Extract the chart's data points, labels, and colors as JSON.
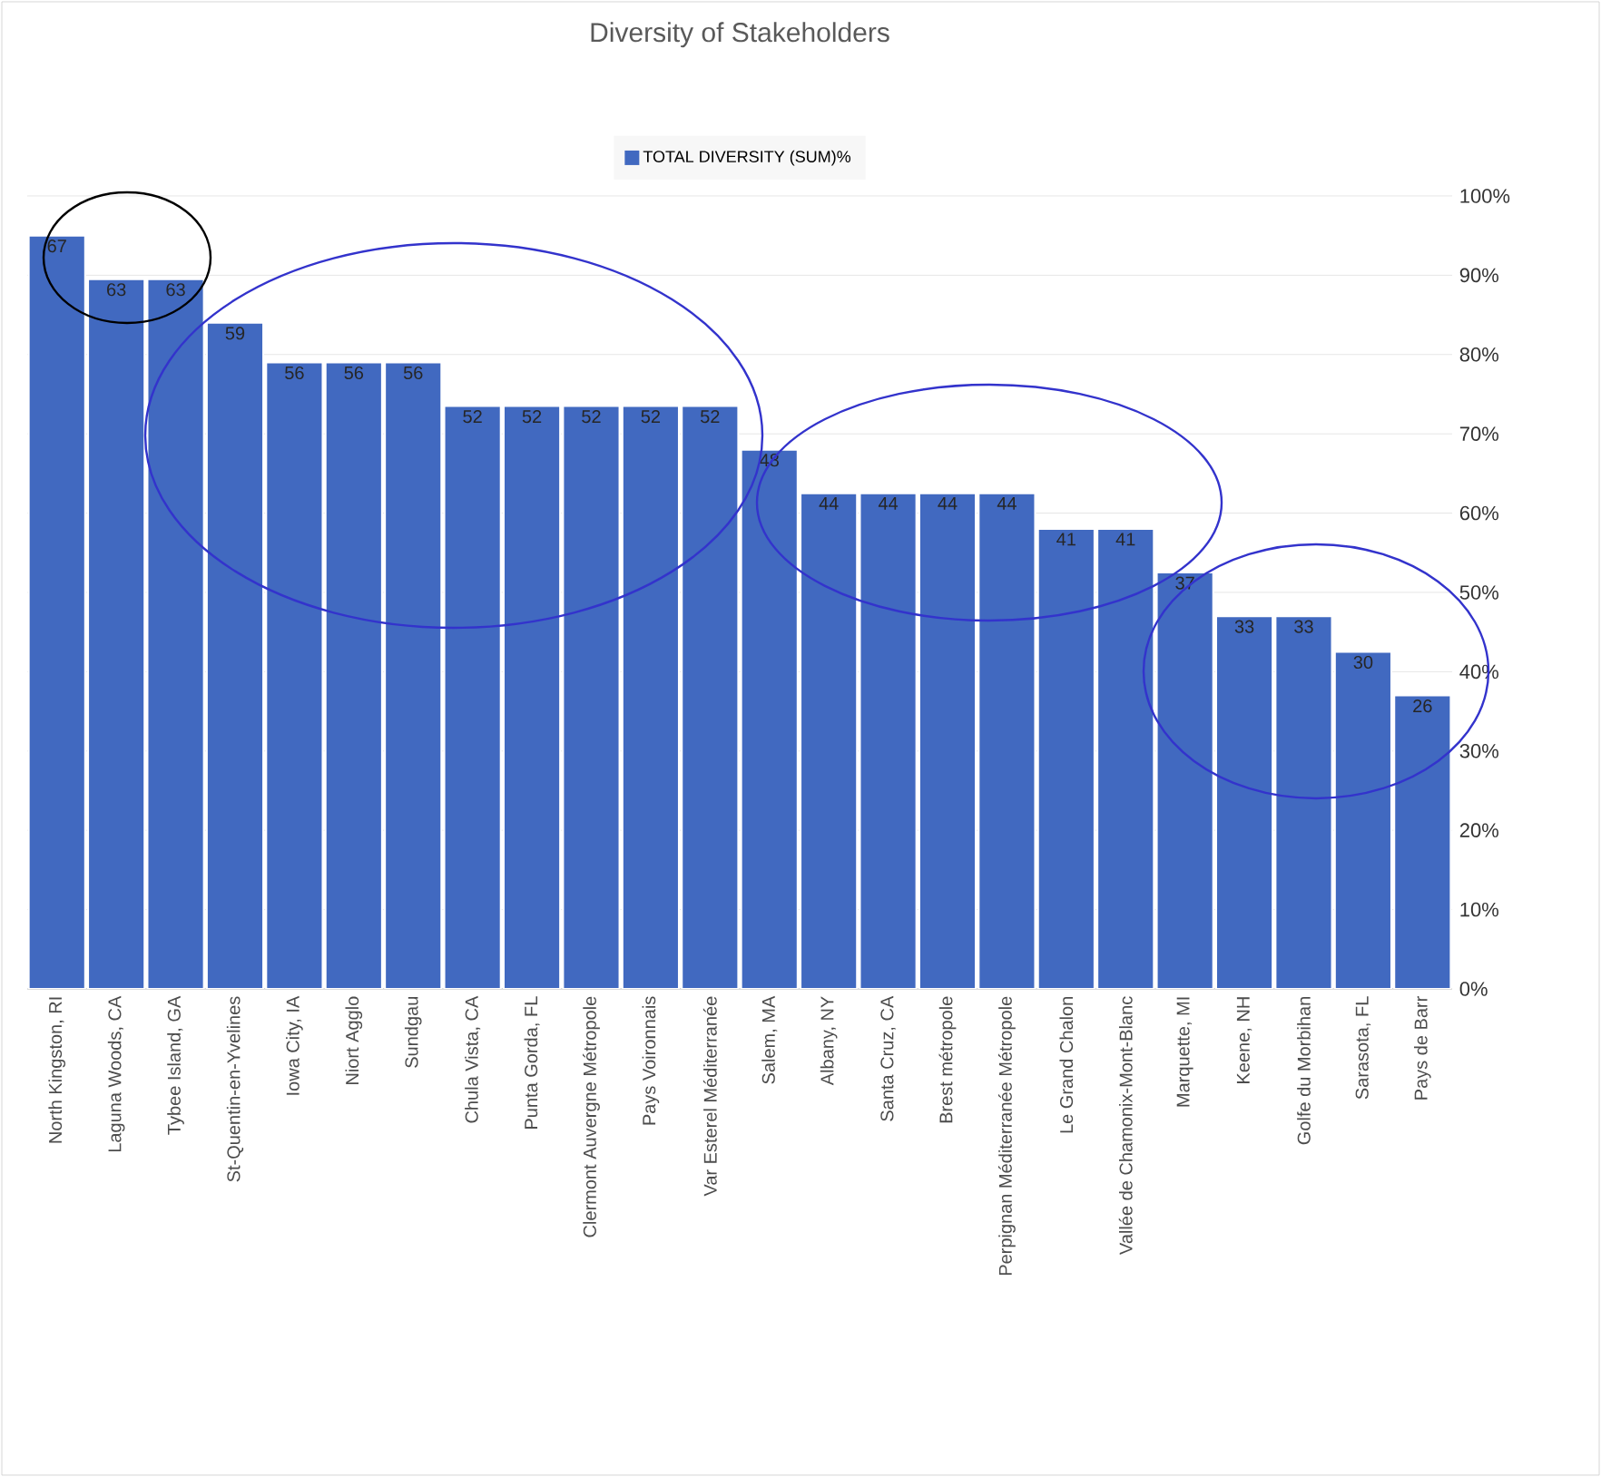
{
  "chart_data": {
    "type": "bar",
    "title": "Diversity of Stakeholders",
    "categories": [
      "North Kingston, RI",
      "Laguna Woods, CA",
      "Tybee Island, GA",
      "St-Quentin-en-Yvelines",
      "Iowa City, IA",
      "Niort Agglo",
      "Sundgau",
      "Chula Vista, CA",
      "Punta Gorda, FL",
      "Clermont Auvergne Métropole",
      "Pays Voironnais",
      "Var Esterel Méditerranée",
      "Salem, MA",
      "Albany, NY",
      "Santa Cruz, CA",
      "Brest métropole",
      "Perpignan Méditerranée Métropole",
      "Le Grand Chalon",
      "Vallée de Chamonix-Mont-Blanc",
      "Marquette, MI",
      "Keene, NH",
      "Golfe du Morbihan",
      "Sarasota, FL",
      "Pays de Barr"
    ],
    "series": [
      {
        "name": "TOTAL DIVERSITY (SUM)%",
        "color": "#4169c0",
        "values": [
          95,
          89.5,
          89.5,
          84,
          79,
          79,
          79,
          73.5,
          73.5,
          73.5,
          73.5,
          73.5,
          68,
          62.5,
          62.5,
          62.5,
          62.5,
          58,
          58,
          52.5,
          47,
          47,
          42.5,
          37
        ]
      }
    ],
    "value_labels": [
      "67",
      "63",
      "63",
      "59",
      "56",
      "56",
      "56",
      "52",
      "52",
      "52",
      "52",
      "52",
      "48",
      "44",
      "44",
      "44",
      "44",
      "41",
      "41",
      "37",
      "33",
      "33",
      "30",
      "26"
    ],
    "ylim": [
      0,
      100
    ],
    "yticks": [
      {
        "value": 0,
        "label": "0%"
      },
      {
        "value": 10,
        "label": "10%"
      },
      {
        "value": 20,
        "label": "20%"
      },
      {
        "value": 30,
        "label": "30%"
      },
      {
        "value": 40,
        "label": "40%"
      },
      {
        "value": 50,
        "label": "50%"
      },
      {
        "value": 60,
        "label": "60%"
      },
      {
        "value": 70,
        "label": "70%"
      },
      {
        "value": 80,
        "label": "80%"
      },
      {
        "value": 90,
        "label": "90%"
      },
      {
        "value": 100,
        "label": "100%"
      }
    ],
    "grid": "y",
    "legend": "top"
  }
}
